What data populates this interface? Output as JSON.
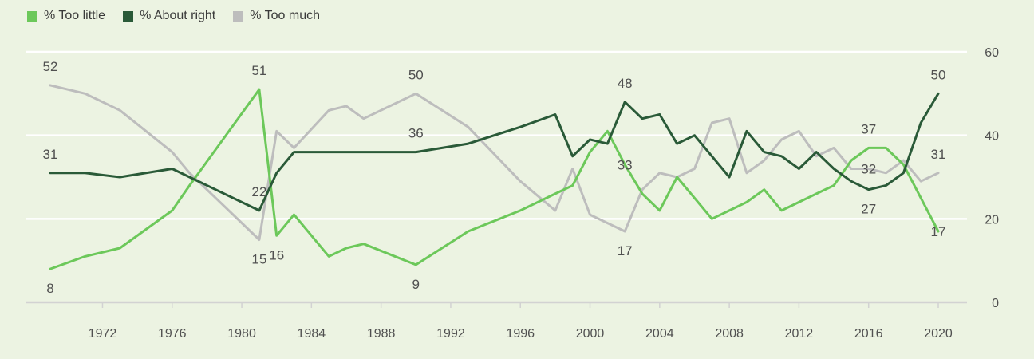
{
  "chart_data": {
    "type": "line",
    "ylim": [
      0,
      60
    ],
    "yticks": [
      0,
      20,
      40,
      60
    ],
    "xticks": [
      1972,
      1976,
      1980,
      1984,
      1988,
      1992,
      1996,
      2000,
      2004,
      2008,
      2012,
      2016,
      2020
    ],
    "x_range": [
      1969,
      2021.5
    ],
    "grid": true,
    "legend_position": "top-left",
    "series": [
      {
        "key": "too_little",
        "name": "% Too little",
        "color": "#6cc85a",
        "points": [
          [
            1969,
            8
          ],
          [
            1971,
            11
          ],
          [
            1973,
            13
          ],
          [
            1976,
            22
          ],
          [
            1977,
            28
          ],
          [
            1981,
            51
          ],
          [
            1982,
            16
          ],
          [
            1983,
            21
          ],
          [
            1985,
            11
          ],
          [
            1986,
            13
          ],
          [
            1987,
            14
          ],
          [
            1990,
            9
          ],
          [
            1993,
            17
          ],
          [
            1996,
            22
          ],
          [
            1998,
            26
          ],
          [
            1999,
            28
          ],
          [
            2000,
            36
          ],
          [
            2001,
            41
          ],
          [
            2002,
            33
          ],
          [
            2003,
            26
          ],
          [
            2004,
            22
          ],
          [
            2005,
            30
          ],
          [
            2006,
            25
          ],
          [
            2007,
            20
          ],
          [
            2008,
            22
          ],
          [
            2009,
            24
          ],
          [
            2010,
            27
          ],
          [
            2011,
            22
          ],
          [
            2012,
            24
          ],
          [
            2013,
            26
          ],
          [
            2014,
            28
          ],
          [
            2015,
            34
          ],
          [
            2016,
            37
          ],
          [
            2017,
            37
          ],
          [
            2018,
            33
          ],
          [
            2019,
            25
          ],
          [
            2020,
            17
          ]
        ]
      },
      {
        "key": "about_right",
        "name": "% About right",
        "color": "#2a5a38",
        "points": [
          [
            1969,
            31
          ],
          [
            1971,
            31
          ],
          [
            1973,
            30
          ],
          [
            1976,
            32
          ],
          [
            1977,
            30
          ],
          [
            1981,
            22
          ],
          [
            1982,
            31
          ],
          [
            1983,
            36
          ],
          [
            1985,
            36
          ],
          [
            1986,
            36
          ],
          [
            1987,
            36
          ],
          [
            1990,
            36
          ],
          [
            1993,
            38
          ],
          [
            1996,
            42
          ],
          [
            1998,
            45
          ],
          [
            1999,
            35
          ],
          [
            2000,
            39
          ],
          [
            2001,
            38
          ],
          [
            2002,
            48
          ],
          [
            2003,
            44
          ],
          [
            2004,
            45
          ],
          [
            2005,
            38
          ],
          [
            2006,
            40
          ],
          [
            2007,
            35
          ],
          [
            2008,
            30
          ],
          [
            2009,
            41
          ],
          [
            2010,
            36
          ],
          [
            2011,
            35
          ],
          [
            2012,
            32
          ],
          [
            2013,
            36
          ],
          [
            2014,
            32
          ],
          [
            2015,
            29
          ],
          [
            2016,
            27
          ],
          [
            2017,
            28
          ],
          [
            2018,
            31
          ],
          [
            2019,
            43
          ],
          [
            2020,
            50
          ]
        ]
      },
      {
        "key": "too_much",
        "name": "% Too much",
        "color": "#bdbdbd",
        "points": [
          [
            1969,
            52
          ],
          [
            1971,
            50
          ],
          [
            1973,
            46
          ],
          [
            1976,
            36
          ],
          [
            1977,
            31
          ],
          [
            1981,
            15
          ],
          [
            1982,
            41
          ],
          [
            1983,
            37
          ],
          [
            1985,
            46
          ],
          [
            1986,
            47
          ],
          [
            1987,
            44
          ],
          [
            1990,
            50
          ],
          [
            1993,
            42
          ],
          [
            1996,
            29
          ],
          [
            1998,
            22
          ],
          [
            1999,
            32
          ],
          [
            2000,
            21
          ],
          [
            2001,
            19
          ],
          [
            2002,
            17
          ],
          [
            2003,
            27
          ],
          [
            2004,
            31
          ],
          [
            2005,
            30
          ],
          [
            2006,
            32
          ],
          [
            2007,
            43
          ],
          [
            2008,
            44
          ],
          [
            2009,
            31
          ],
          [
            2010,
            34
          ],
          [
            2011,
            39
          ],
          [
            2012,
            41
          ],
          [
            2013,
            35
          ],
          [
            2014,
            37
          ],
          [
            2015,
            32
          ],
          [
            2016,
            32
          ],
          [
            2017,
            31
          ],
          [
            2018,
            34
          ],
          [
            2019,
            29
          ],
          [
            2020,
            31
          ]
        ]
      }
    ],
    "annotations": [
      {
        "x": 1969,
        "y": 8,
        "text": "8",
        "pos": "below"
      },
      {
        "x": 1969,
        "y": 31,
        "text": "31",
        "pos": "above"
      },
      {
        "x": 1969,
        "y": 52,
        "text": "52",
        "pos": "above"
      },
      {
        "x": 1981,
        "y": 51,
        "text": "51",
        "pos": "above"
      },
      {
        "x": 1981,
        "y": 22,
        "text": "22",
        "pos": "above"
      },
      {
        "x": 1981,
        "y": 15,
        "text": "15",
        "pos": "below"
      },
      {
        "x": 1982,
        "y": 16,
        "text": "16",
        "pos": "below"
      },
      {
        "x": 1990,
        "y": 9,
        "text": "9",
        "pos": "below"
      },
      {
        "x": 1990,
        "y": 36,
        "text": "36",
        "pos": "above"
      },
      {
        "x": 1990,
        "y": 50,
        "text": "50",
        "pos": "above"
      },
      {
        "x": 2002,
        "y": 48,
        "text": "48",
        "pos": "above"
      },
      {
        "x": 2002,
        "y": 33,
        "text": "33",
        "pos": "inline"
      },
      {
        "x": 2002,
        "y": 17,
        "text": "17",
        "pos": "below"
      },
      {
        "x": 2016,
        "y": 37,
        "text": "37",
        "pos": "above"
      },
      {
        "x": 2016,
        "y": 32,
        "text": "32",
        "pos": "inline"
      },
      {
        "x": 2016,
        "y": 27,
        "text": "27",
        "pos": "below"
      },
      {
        "x": 2020,
        "y": 50,
        "text": "50",
        "pos": "above"
      },
      {
        "x": 2020,
        "y": 31,
        "text": "31",
        "pos": "above"
      },
      {
        "x": 2020,
        "y": 17,
        "text": "17",
        "pos": "inline"
      }
    ]
  }
}
